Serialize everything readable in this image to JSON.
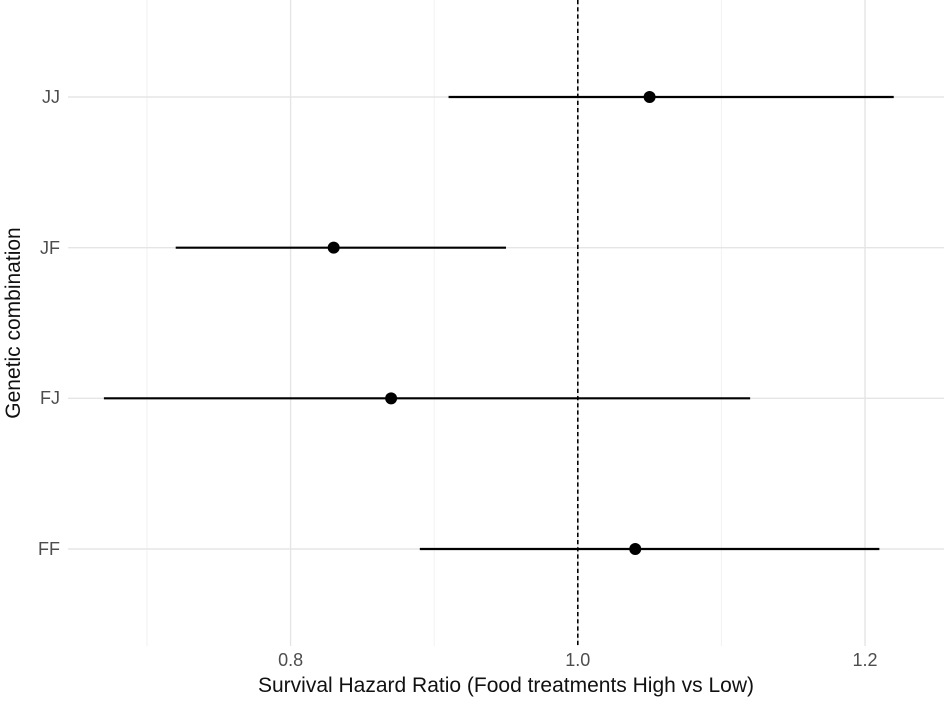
{
  "figure": {
    "xlabel": "Survival Hazard Ratio (Food treatments High vs Low)",
    "ylabel": "Genetic combination"
  },
  "chart_data": {
    "type": "scatter",
    "subtype": "forest-plot-horizontal-ci",
    "title": "",
    "xlabel": "Survival Hazard Ratio (Food treatments High vs Low)",
    "ylabel": "Genetic combination",
    "categories": [
      "JJ",
      "JF",
      "FJ",
      "FF"
    ],
    "series": [
      {
        "name": "hazard-ratio",
        "points": [
          {
            "category": "JJ",
            "estimate": 1.05,
            "ci_low": 0.91,
            "ci_high": 1.22
          },
          {
            "category": "JF",
            "estimate": 0.83,
            "ci_low": 0.72,
            "ci_high": 0.95
          },
          {
            "category": "FJ",
            "estimate": 0.87,
            "ci_low": 0.67,
            "ci_high": 1.12
          },
          {
            "category": "FF",
            "estimate": 1.04,
            "ci_low": 0.89,
            "ci_high": 1.21
          }
        ]
      }
    ],
    "reference_line": {
      "x": 1.0,
      "style": "dashed",
      "color": "#000000"
    },
    "x_major_ticks": [
      0.8,
      1.0,
      1.2
    ],
    "x_minor_ticks": [
      0.7,
      0.9,
      1.1
    ],
    "xlim": [
      0.645,
      1.255
    ],
    "grid": true,
    "legend": false,
    "colors": {
      "point": "#000000",
      "ci_line": "#000000",
      "major_grid": "#e5e5e5",
      "minor_grid": "#f2f2f2",
      "tick_text": "#4d4d4d",
      "title_text": "#111111",
      "background": "#ffffff"
    }
  }
}
